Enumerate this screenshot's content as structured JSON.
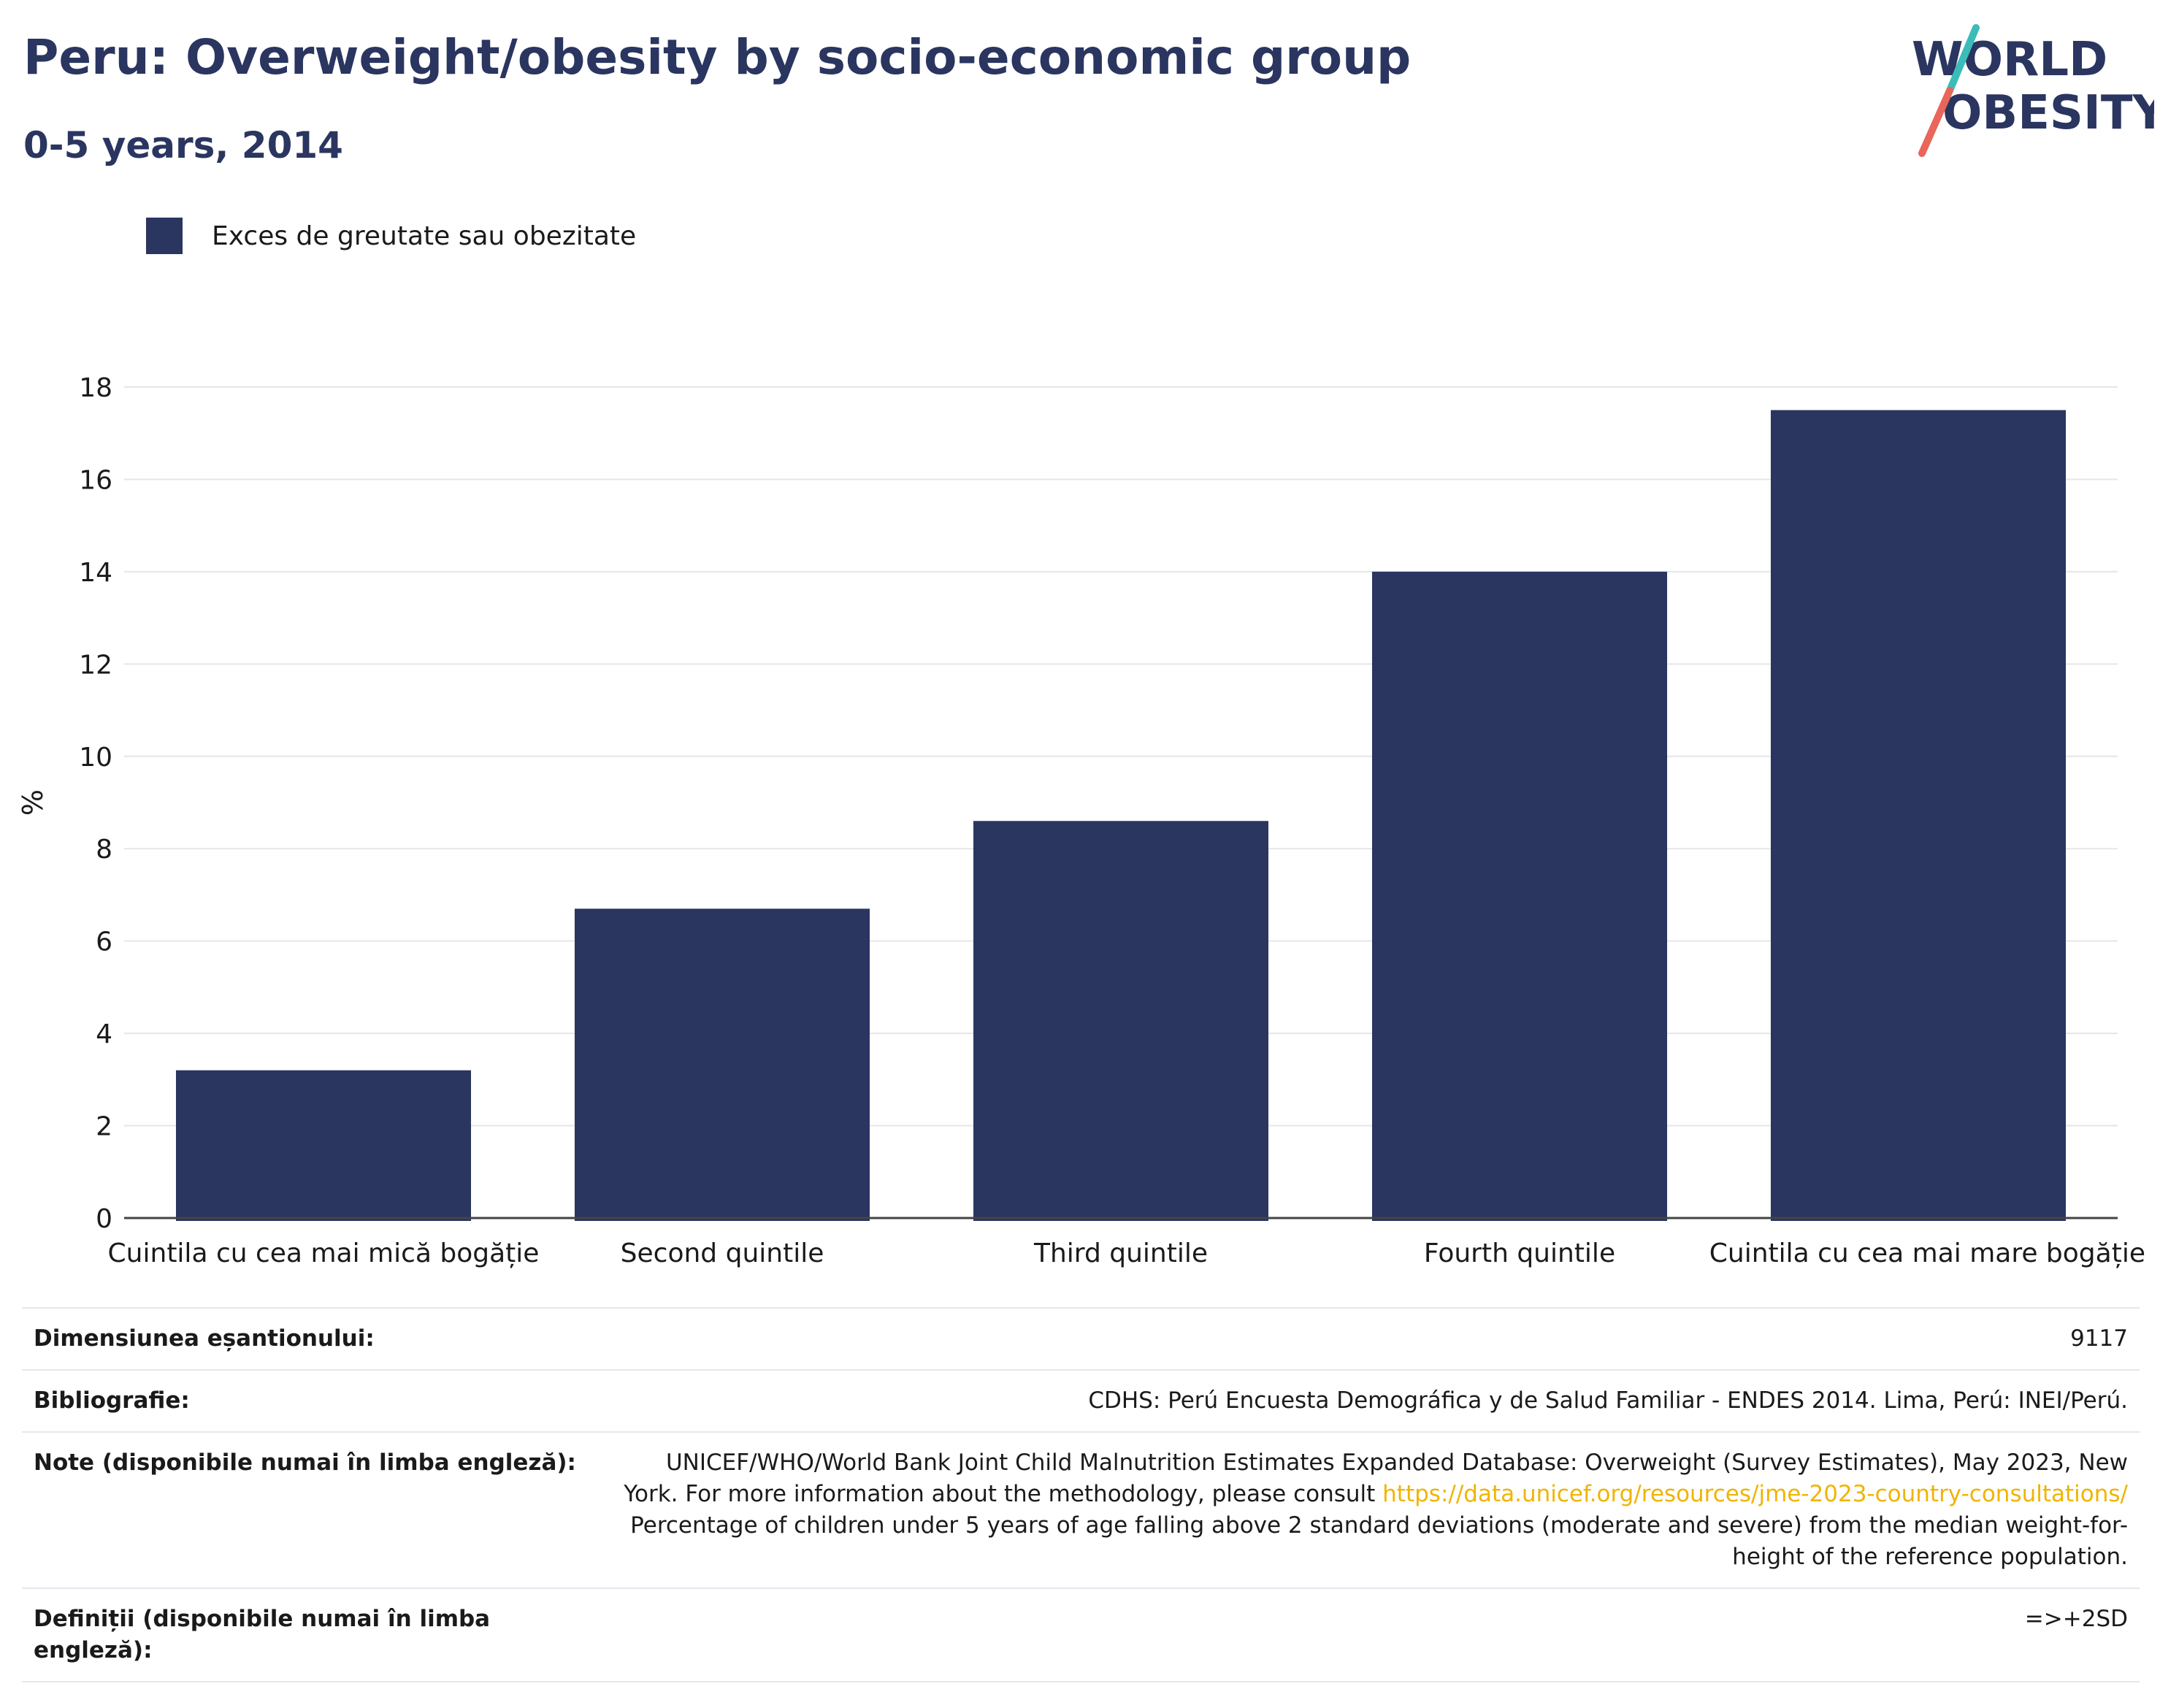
{
  "header": {
    "title": "Peru: Overweight/obesity by socio-economic group",
    "subtitle": "0-5 years, 2014"
  },
  "logo": {
    "line1": "WORLD",
    "line2": "OBESITY",
    "colors": {
      "text": "#2a3560",
      "slash_top": "#3bbcb8",
      "slash_bottom": "#e8665a"
    }
  },
  "legend": {
    "items": [
      {
        "label": "Exces de greutate sau obezitate",
        "color": "#2a3560"
      }
    ],
    "placement": "top-left"
  },
  "chart_data": {
    "type": "bar",
    "categories": [
      "Cuintila cu cea mai mică bogăție",
      "Second quintile",
      "Third quintile",
      "Fourth quintile",
      "Cuintila cu cea mai mare bogăție"
    ],
    "series": [
      {
        "name": "Exces de greutate sau obezitate",
        "values": [
          3.2,
          6.7,
          8.6,
          14.0,
          17.5
        ],
        "color": "#2a3560"
      }
    ],
    "ylabel": "%",
    "ylim": [
      0,
      18
    ],
    "yticks": [
      0,
      2,
      4,
      6,
      8,
      10,
      12,
      14,
      16,
      18
    ],
    "grid": true
  },
  "meta": {
    "rows": [
      {
        "label": "Dimensiunea eșantionului:",
        "value": "9117"
      },
      {
        "label": "Bibliografie:",
        "value": "CDHS: Perú Encuesta Demográfica y de Salud Familiar - ENDES 2014. Lima, Perú: INEI/Perú."
      },
      {
        "label": "Note (disponibile numai în limba engleză):",
        "value_before": "UNICEF/WHO/World Bank Joint Child Malnutrition Estimates Expanded Database: Overweight (Survey Estimates), May 2023, New York. For more information about the methodology, please consult ",
        "link": "https://data.unicef.org/resources/jme-2023-country-consultations/",
        "value_after": " Percentage of children under 5 years of age falling above 2 standard deviations (moderate and severe) from the median weight-for-height of the reference population."
      },
      {
        "label": "Definiții (disponibile numai în limba engleză):",
        "value": "=>+2SD"
      }
    ]
  }
}
